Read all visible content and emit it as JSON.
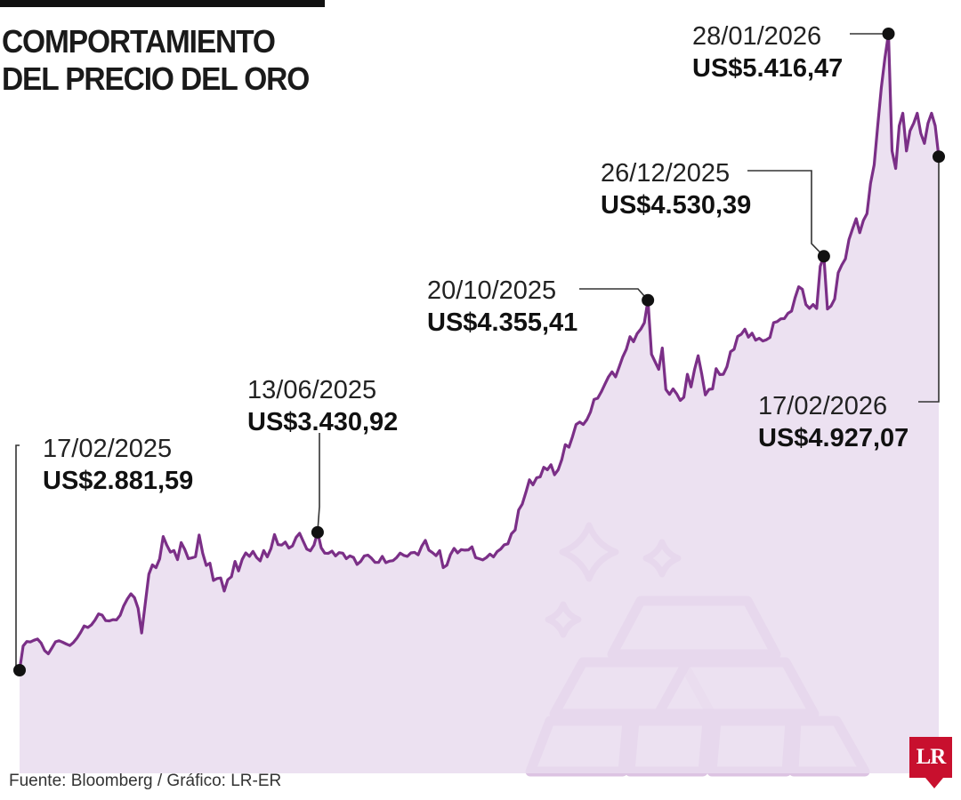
{
  "header": {
    "title_line1": "COMPORTAMIENTO",
    "title_line2": "DEL PRECIO DEL ORO"
  },
  "footer": {
    "source": "Fuente: Bloomberg / Gráfico: LR-ER",
    "logo": "LR"
  },
  "colors": {
    "line": "#7b2f87",
    "area": "#e9dcef",
    "bars": "#dcc3e2",
    "logo": "#c8102e"
  },
  "illustration": {
    "icon": "gold-bars-icon"
  },
  "chart_data": {
    "type": "area",
    "x_start": "17/02/2025",
    "x_end": "17/02/2026",
    "y": [
      2881.59,
      2978,
      2996,
      2994,
      3001,
      3006,
      2990,
      2960,
      2947,
      2970,
      2995,
      2999,
      2993,
      2986,
      2980,
      2992,
      3010,
      3032,
      3058,
      3052,
      3062,
      3081,
      3106,
      3101,
      3079,
      3078,
      3083,
      3082,
      3100,
      3138,
      3165,
      3186,
      3171,
      3128,
      3030,
      3146,
      3264,
      3301,
      3290,
      3325,
      3414,
      3380,
      3352,
      3358,
      3322,
      3390,
      3363,
      3326,
      3329,
      3334,
      3420,
      3348,
      3299,
      3308,
      3239,
      3247,
      3249,
      3197,
      3242,
      3254,
      3315,
      3277,
      3323,
      3349,
      3335,
      3355,
      3331,
      3317,
      3358,
      3333,
      3366,
      3422,
      3382,
      3380,
      3392,
      3368,
      3377,
      3410,
      3427,
      3395,
      3364,
      3357,
      3380,
      3430.92,
      3369,
      3348,
      3347,
      3356,
      3337,
      3350,
      3348,
      3326,
      3337,
      3331,
      3303,
      3315,
      3337,
      3340,
      3328,
      3311,
      3311,
      3335,
      3310,
      3316,
      3318,
      3330,
      3348,
      3339,
      3335,
      3349,
      3351,
      3341,
      3375,
      3399,
      3360,
      3350,
      3338,
      3358,
      3290,
      3300,
      3342,
      3367,
      3349,
      3362,
      3360,
      3361,
      3373,
      3330,
      3326,
      3321,
      3330,
      3344,
      3333,
      3354,
      3364,
      3381,
      3385,
      3425,
      3440,
      3520,
      3543,
      3590,
      3640,
      3620,
      3648,
      3652,
      3690,
      3680,
      3700,
      3660,
      3680,
      3720,
      3780,
      3770,
      3812,
      3860,
      3870,
      3860,
      3880,
      3910,
      3960,
      3965,
      3990,
      4020,
      4050,
      4070,
      4050,
      4090,
      4130,
      4160,
      4210,
      4190,
      4222,
      4240,
      4265,
      4355.41,
      4140,
      4110,
      4080,
      4165,
      4000,
      3980,
      4002,
      3983,
      3956,
      3969,
      4060,
      4010,
      4080,
      4134,
      4060,
      3978,
      4000,
      4002,
      4083,
      4059,
      4060,
      4090,
      4150,
      4160,
      4211,
      4220,
      4240,
      4208,
      4224,
      4196,
      4204,
      4193,
      4198,
      4207,
      4266,
      4270,
      4281,
      4282,
      4303,
      4312,
      4366,
      4409,
      4399,
      4338,
      4323,
      4338,
      4322,
      4490,
      4530.39,
      4320,
      4332,
      4360,
      4465,
      4496,
      4520,
      4597,
      4640,
      4680,
      4624,
      4673,
      4700,
      4820,
      4894,
      5050,
      5200,
      5320,
      5416.47,
      4950,
      4880,
      5050,
      5100,
      4950,
      5030,
      5060,
      5100,
      5020,
      4980,
      5060,
      5100,
      5050,
      4927.07
    ],
    "highlights": [
      {
        "date": "17/02/2025",
        "value": "US$2.881,59"
      },
      {
        "date": "13/06/2025",
        "value": "US$3.430,92"
      },
      {
        "date": "20/10/2025",
        "value": "US$4.355,41"
      },
      {
        "date": "26/12/2025",
        "value": "US$4.530,39"
      },
      {
        "date": "28/01/2026",
        "value": "US$5.416,47"
      },
      {
        "date": "17/02/2026",
        "value": "US$4.927,07"
      }
    ],
    "title": "COMPORTAMIENTO DEL PRECIO DEL ORO",
    "ylim": [
      2500,
      5600
    ],
    "grid": false,
    "legend": "none"
  }
}
